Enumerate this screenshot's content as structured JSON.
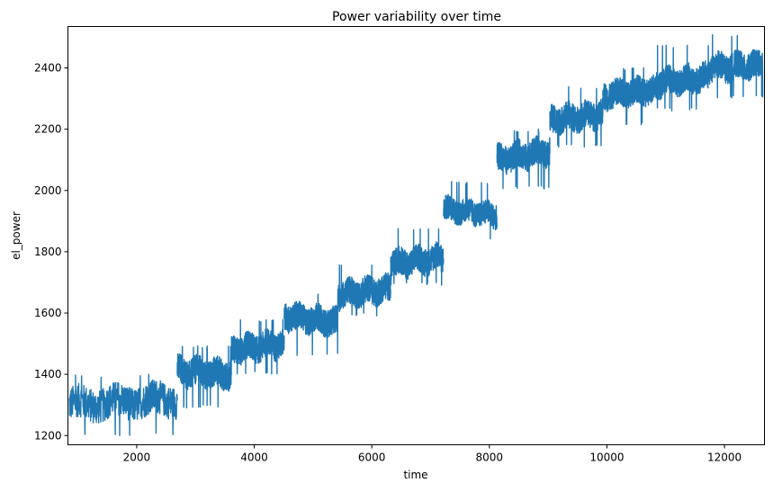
{
  "chart_data": {
    "type": "line",
    "title": "Power variability over time",
    "xlabel": "time",
    "ylabel": "el_power",
    "xlim": [
      830,
      12680
    ],
    "ylim": [
      1170,
      2535
    ],
    "xticks": [
      2000,
      4000,
      6000,
      8000,
      10000,
      12000
    ],
    "yticks": [
      1200,
      1400,
      1600,
      1800,
      2000,
      2200,
      2400
    ],
    "grid": false,
    "color": "#1f77b4",
    "segments": [
      {
        "x_start": 850,
        "x_end": 2690,
        "y_start": 1300,
        "y_end": 1320,
        "amplitude": 55,
        "max": 1400,
        "min": 1200
      },
      {
        "x_start": 2690,
        "x_end": 3610,
        "y_start": 1410,
        "y_end": 1400,
        "amplitude": 48,
        "max": 1495,
        "min": 1290
      },
      {
        "x_start": 3610,
        "x_end": 4510,
        "y_start": 1480,
        "y_end": 1500,
        "amplitude": 45,
        "max": 1580,
        "min": 1400
      },
      {
        "x_start": 4510,
        "x_end": 5420,
        "y_start": 1590,
        "y_end": 1570,
        "amplitude": 45,
        "max": 1665,
        "min": 1460
      },
      {
        "x_start": 5420,
        "x_end": 6320,
        "y_start": 1660,
        "y_end": 1680,
        "amplitude": 45,
        "max": 1760,
        "min": 1590
      },
      {
        "x_start": 6320,
        "x_end": 7220,
        "y_start": 1760,
        "y_end": 1780,
        "amplitude": 45,
        "max": 1880,
        "min": 1690
      },
      {
        "x_start": 7220,
        "x_end": 8130,
        "y_start": 1940,
        "y_end": 1920,
        "amplitude": 40,
        "max": 2030,
        "min": 1835
      },
      {
        "x_start": 8130,
        "x_end": 9030,
        "y_start": 2100,
        "y_end": 2130,
        "amplitude": 45,
        "max": 2200,
        "min": 2005
      },
      {
        "x_start": 9030,
        "x_end": 9930,
        "y_start": 2230,
        "y_end": 2250,
        "amplitude": 45,
        "max": 2340,
        "min": 2140
      },
      {
        "x_start": 9930,
        "x_end": 10840,
        "y_start": 2310,
        "y_end": 2330,
        "amplitude": 45,
        "max": 2400,
        "min": 2215
      },
      {
        "x_start": 10840,
        "x_end": 11740,
        "y_start": 2350,
        "y_end": 2370,
        "amplitude": 45,
        "max": 2475,
        "min": 2260
      },
      {
        "x_start": 11740,
        "x_end": 12650,
        "y_start": 2400,
        "y_end": 2410,
        "amplitude": 45,
        "max": 2510,
        "min": 2300
      }
    ]
  }
}
